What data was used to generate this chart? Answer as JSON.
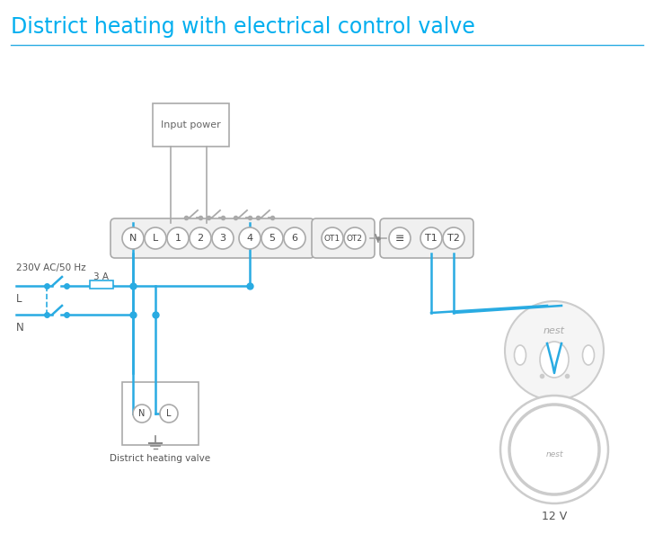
{
  "title": "District heating with electrical control valve",
  "title_color": "#00AEEF",
  "title_fontsize": 17,
  "bg_color": "#ffffff",
  "line_color": "#29ABE2",
  "gray": "#aaaaaa",
  "gray_dark": "#888888",
  "text_color": "#555555",
  "label_230v": "230V AC/50 Hz",
  "label_L": "L",
  "label_N": "N",
  "label_3A": "3 A",
  "label_input_power": "Input power",
  "label_district_valve": "District heating valve",
  "label_12v": "12 V",
  "label_nest": "nest"
}
